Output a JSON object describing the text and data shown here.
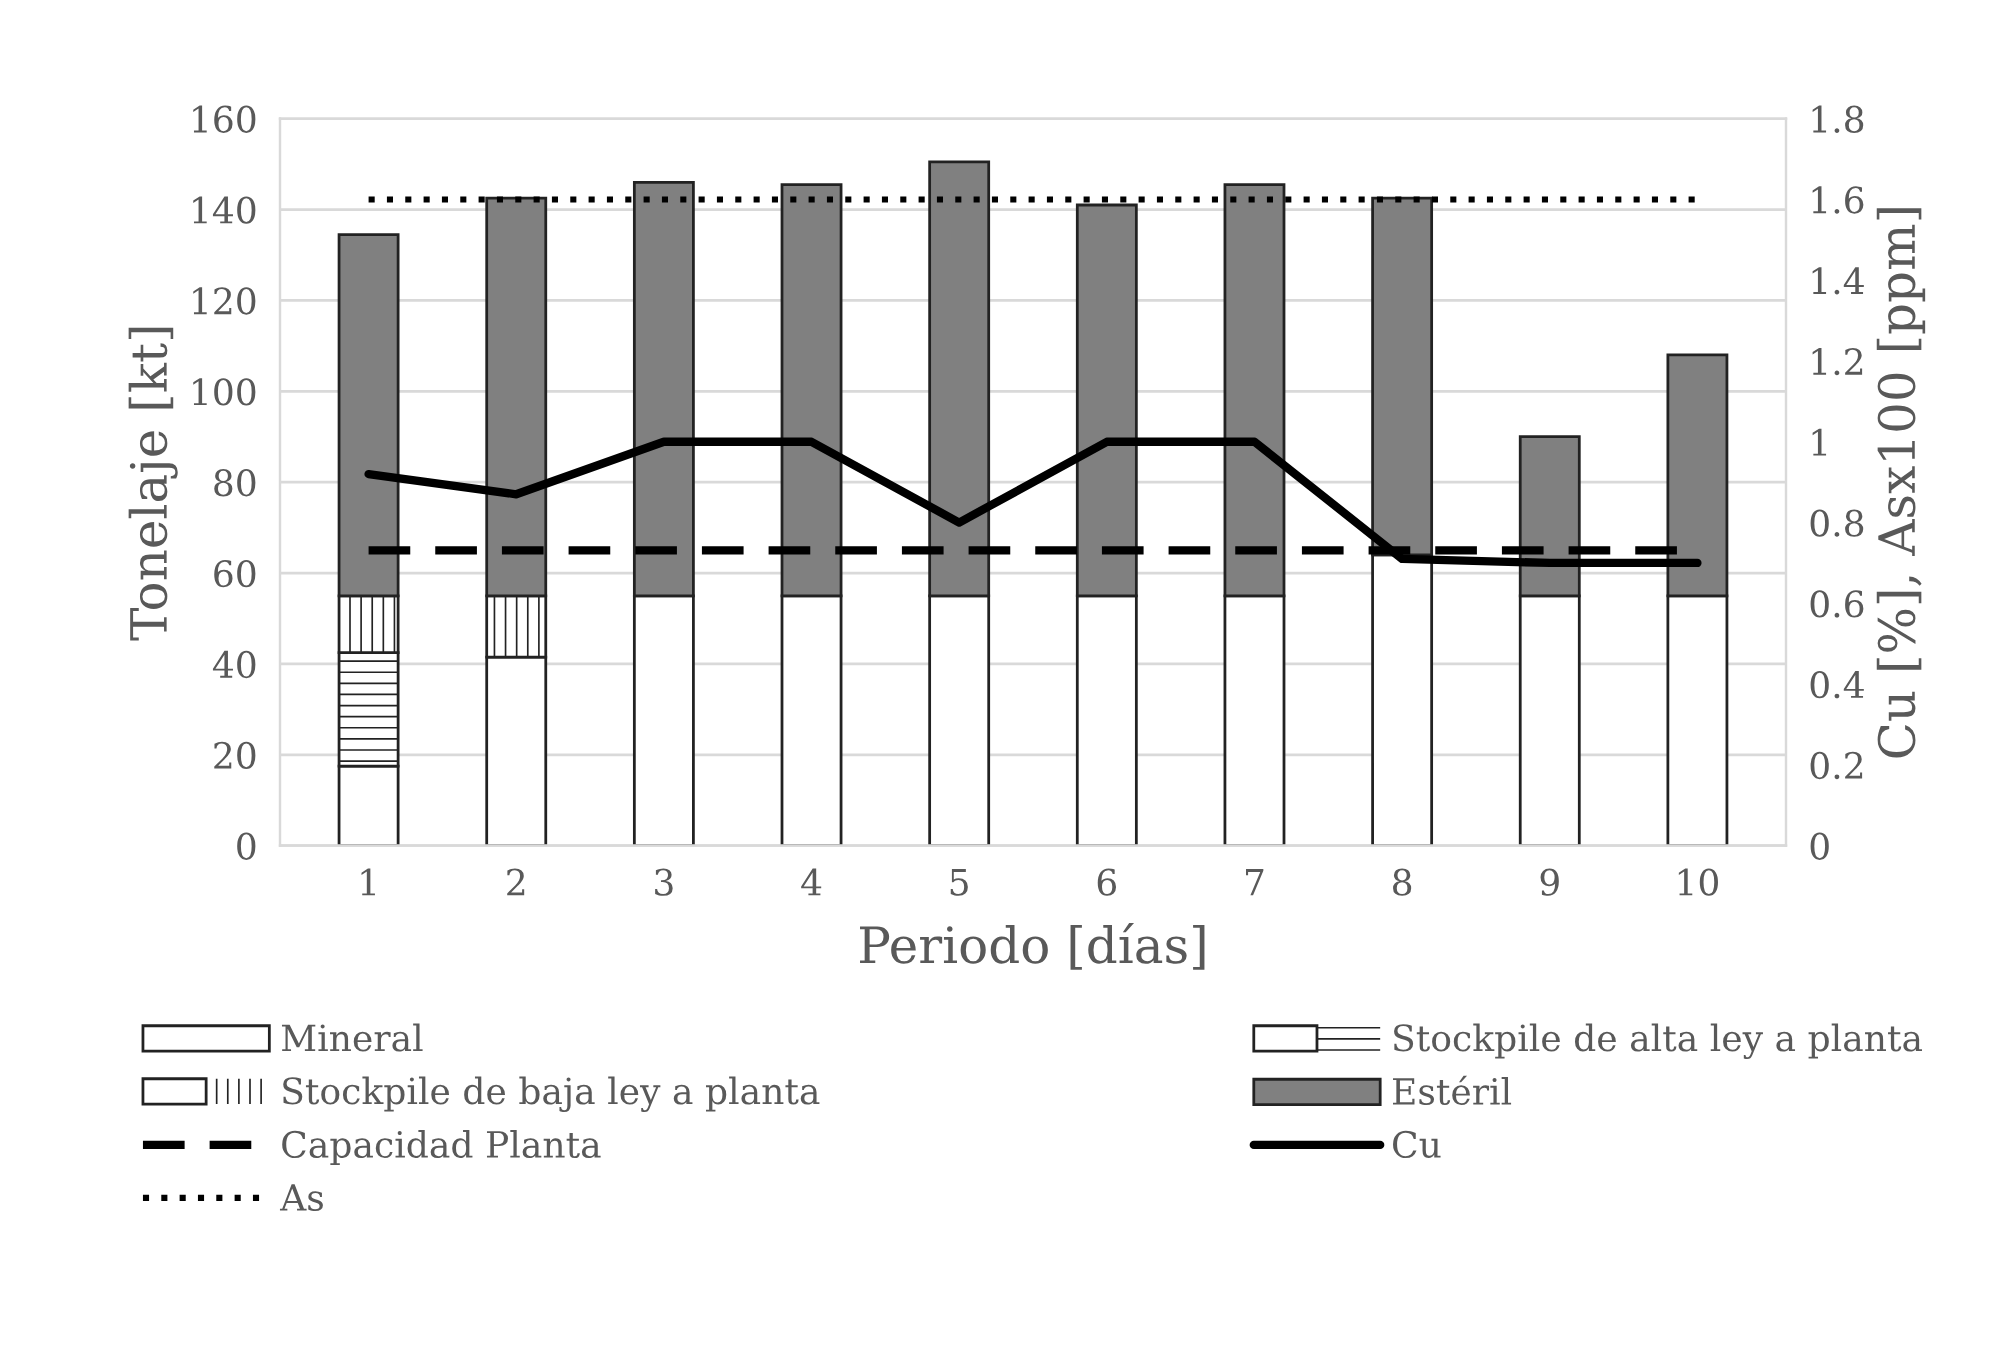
{
  "chart_data": {
    "type": "bar",
    "stacked": true,
    "xlabel": "Periodo [días]",
    "ylabel": "Tonelaje [kt]",
    "y2label": "Cu [%], Asx100 [ppm]",
    "categories": [
      "1",
      "2",
      "3",
      "4",
      "5",
      "6",
      "7",
      "8",
      "9",
      "10"
    ],
    "series": [
      {
        "name": "Mineral",
        "color": "#ffffff",
        "values": [
          17.5,
          41.5,
          55,
          55,
          55,
          55,
          55,
          64,
          55,
          55
        ]
      },
      {
        "name": "Stockpile de alta ley a planta",
        "color": "#ffffff",
        "values": [
          25,
          null,
          null,
          null,
          null,
          null,
          null,
          null,
          null,
          null
        ]
      },
      {
        "name": "Stockpile de baja ley a planta",
        "color": "#ffffff",
        "values": [
          12.5,
          13.5,
          null,
          null,
          null,
          null,
          null,
          null,
          null,
          null
        ]
      },
      {
        "name": "Estéril",
        "color": "#808080",
        "values": [
          79.5,
          87.5,
          91,
          90.5,
          95.5,
          86,
          90.5,
          78.5,
          35,
          53
        ]
      },
      {
        "name": "Capacidad Planta",
        "type": "line",
        "line_style": "dashed",
        "color": "#000000",
        "values": [
          65,
          65,
          65,
          65,
          65,
          65,
          65,
          65,
          65,
          65
        ]
      },
      {
        "name": "Cu",
        "type": "line",
        "line_style": "solid",
        "axis": "y2",
        "color": "#000000",
        "values": [
          0.92,
          0.87,
          1.0,
          1.0,
          0.8,
          1.0,
          1.0,
          0.71,
          0.7,
          0.7
        ]
      },
      {
        "name": "As",
        "type": "line",
        "line_style": "dotted",
        "axis": "y2",
        "color": "#000000",
        "values": [
          1.6,
          1.6,
          1.6,
          1.6,
          1.6,
          1.6,
          1.6,
          1.6,
          1.6,
          1.6
        ]
      }
    ],
    "ylim": [
      0,
      160
    ],
    "yticks": [
      0,
      20,
      40,
      60,
      80,
      100,
      120,
      140,
      160
    ],
    "y2lim": [
      0,
      1.8
    ],
    "y2ticks": [
      0,
      0.2,
      0.4,
      0.6,
      0.8,
      1,
      1.2,
      1.4,
      1.6,
      1.8
    ],
    "grid": "y",
    "legend": "bottom",
    "marker": "none"
  }
}
